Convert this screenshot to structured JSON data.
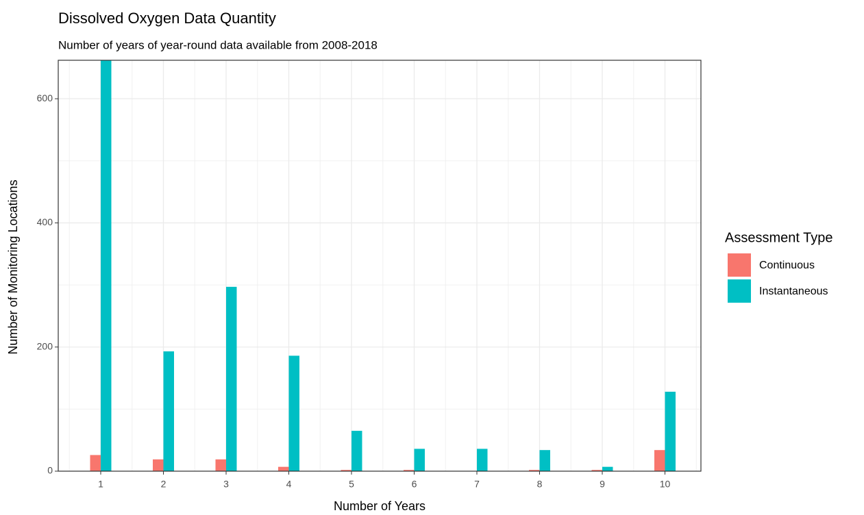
{
  "chart_data": {
    "type": "bar",
    "title": "Dissolved Oxygen Data Quantity",
    "subtitle": "Number of years of year-round data available from 2008-2018",
    "x_label": "Number of Years",
    "y_label": "Number of Monitoring Locations",
    "categories": [
      "1",
      "2",
      "3",
      "4",
      "5",
      "6",
      "7",
      "8",
      "9",
      "10"
    ],
    "series": [
      {
        "name": "Continuous",
        "color": "#F8766D",
        "values": [
          26,
          19,
          19,
          7,
          2,
          2,
          0,
          2,
          2,
          34
        ]
      },
      {
        "name": "Instantaneous",
        "color": "#00BFC4",
        "values": [
          665,
          193,
          297,
          186,
          65,
          36,
          36,
          34,
          7,
          128
        ]
      }
    ],
    "ylim": [
      0,
      662
    ],
    "yticks": [
      0,
      200,
      400,
      600
    ],
    "grid": true,
    "legend_title": "Assessment Type",
    "legend": "right"
  }
}
